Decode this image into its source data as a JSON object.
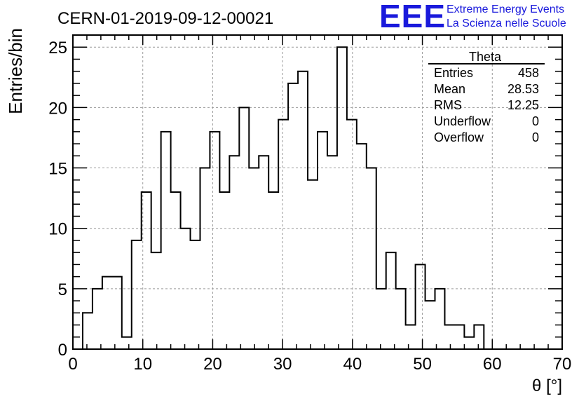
{
  "chart_data": {
    "type": "histogram",
    "title": "CERN-01-2019-09-12-00021",
    "xlabel": "θ [°]",
    "ylabel": "Entries/bin",
    "xlim": [
      0,
      70
    ],
    "ylim": [
      0,
      26
    ],
    "grid": true,
    "x_ticks": [
      0,
      10,
      20,
      30,
      40,
      50,
      60,
      70
    ],
    "y_ticks": [
      0,
      5,
      10,
      15,
      20,
      25
    ],
    "bin_width": 1.4,
    "bin_start": 0,
    "bin_counts": [
      0,
      3,
      5,
      6,
      6,
      1,
      9,
      13,
      8,
      18,
      13,
      10,
      9,
      15,
      18,
      13,
      16,
      20,
      15,
      16,
      13,
      19,
      22,
      23,
      14,
      18,
      16,
      25,
      19,
      17,
      15,
      5,
      8,
      5,
      2,
      7,
      4,
      5,
      2,
      2,
      1,
      2,
      0,
      0,
      0,
      0,
      0,
      0,
      0,
      0
    ],
    "stats_box": {
      "title": "Theta",
      "rows": [
        {
          "label": "Entries",
          "value": "458"
        },
        {
          "label": "Mean",
          "value": "28.53"
        },
        {
          "label": "RMS",
          "value": "12.25"
        },
        {
          "label": "Underflow",
          "value": "0"
        },
        {
          "label": "Overflow",
          "value": "0"
        }
      ]
    }
  },
  "logo": {
    "mark": "EEE",
    "line1": "Extreme Energy Events",
    "line2": "La Scienza nelle Scuole",
    "color": "#1a1adc"
  }
}
